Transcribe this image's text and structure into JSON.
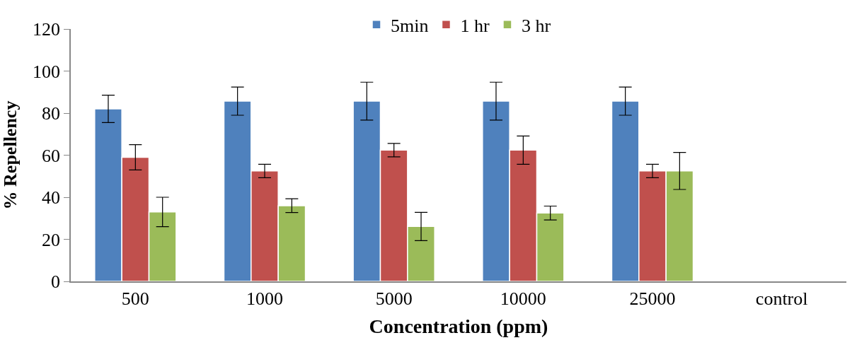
{
  "chart_data": {
    "type": "bar",
    "xlabel": "Concentration (ppm)",
    "ylabel": "% Repellency",
    "categories": [
      "500",
      "1000",
      "5000",
      "10000",
      "25000",
      "control"
    ],
    "series": [
      {
        "name": "5min",
        "color": "#4f81bd",
        "values": [
          82,
          85.7,
          85.7,
          85.7,
          85.7,
          null
        ],
        "errors": [
          6.5,
          6.7,
          9,
          9,
          6.7,
          null
        ]
      },
      {
        "name": "1 hr",
        "color": "#c0504d",
        "values": [
          59,
          52.5,
          62.4,
          62.4,
          52.5,
          null
        ],
        "errors": [
          6,
          3.2,
          3.2,
          6.7,
          3.2,
          null
        ]
      },
      {
        "name": "3 hr",
        "color": "#9bbb59",
        "values": [
          33,
          36,
          26.1,
          32.5,
          52.5,
          null
        ],
        "errors": [
          7,
          3.3,
          6.7,
          3.3,
          8.8,
          null
        ]
      }
    ],
    "ylim": [
      0,
      120
    ],
    "yticks": [
      0,
      20,
      40,
      60,
      80,
      100,
      120
    ],
    "legend": "top"
  }
}
